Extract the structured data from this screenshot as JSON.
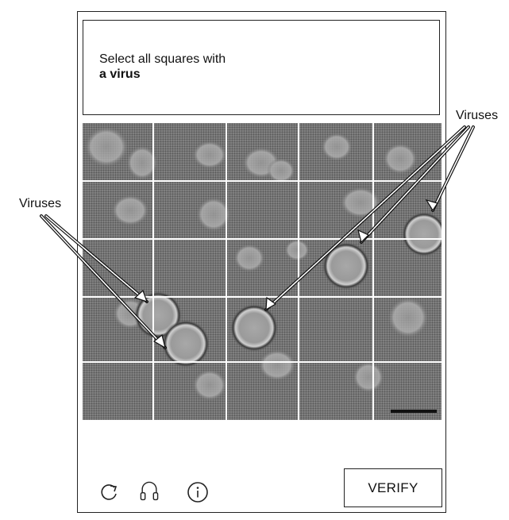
{
  "instruction": {
    "line1": "Select all squares with",
    "line2": "a virus"
  },
  "grid": {
    "rows": 5,
    "cols": 5,
    "accent_line_color": "#ffffff"
  },
  "callouts": {
    "right_label": "Viruses",
    "left_label": "Viruses"
  },
  "toolbar": {
    "refresh_icon": "refresh-icon",
    "audio_icon": "headphones-icon",
    "info_icon": "info-icon",
    "verify_label": "VERIFY"
  }
}
